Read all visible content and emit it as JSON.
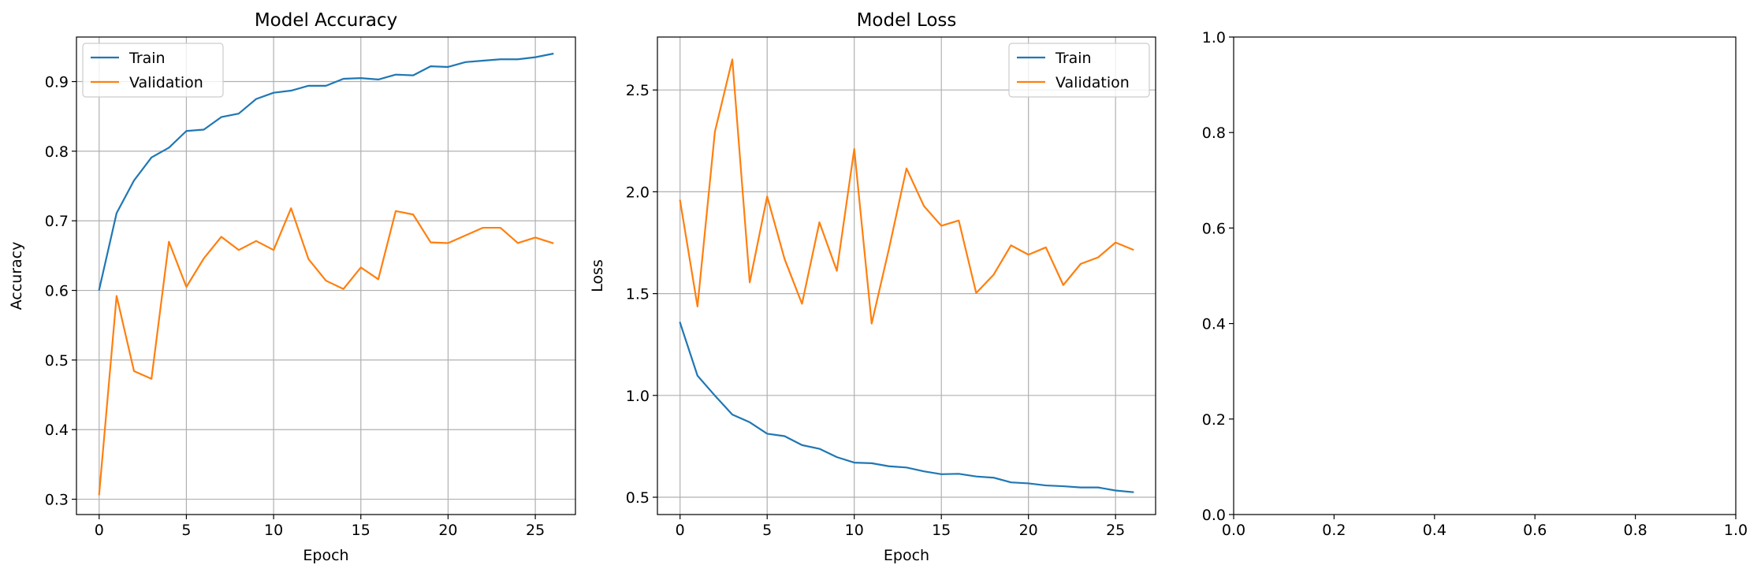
{
  "colors": {
    "train": "#1f77b4",
    "validation": "#ff7f0e",
    "grid": "#b0b0b0",
    "axis": "#000000"
  },
  "chart_data": [
    {
      "type": "line",
      "title": "Model Accuracy",
      "xlabel": "Epoch",
      "ylabel": "Accuracy",
      "xlim": [
        -1.3,
        27.3
      ],
      "ylim": [
        0.278,
        0.964
      ],
      "xticks": [
        0,
        5,
        10,
        15,
        20,
        25
      ],
      "yticks": [
        0.3,
        0.4,
        0.5,
        0.6,
        0.7,
        0.8,
        0.9
      ],
      "grid": true,
      "legend_position": "top-left",
      "x": [
        0,
        1,
        2,
        3,
        4,
        5,
        6,
        7,
        8,
        9,
        10,
        11,
        12,
        13,
        14,
        15,
        16,
        17,
        18,
        19,
        20,
        21,
        22,
        23,
        24,
        25,
        26
      ],
      "series": [
        {
          "name": "Train",
          "color": "#1f77b4",
          "values": [
            0.601,
            0.711,
            0.758,
            0.791,
            0.805,
            0.829,
            0.831,
            0.849,
            0.854,
            0.875,
            0.884,
            0.887,
            0.894,
            0.894,
            0.904,
            0.905,
            0.903,
            0.91,
            0.909,
            0.922,
            0.921,
            0.928,
            0.93,
            0.932,
            0.932,
            0.935,
            0.94
          ]
        },
        {
          "name": "Validation",
          "color": "#ff7f0e",
          "values": [
            0.307,
            0.592,
            0.484,
            0.473,
            0.67,
            0.605,
            0.646,
            0.677,
            0.658,
            0.671,
            0.658,
            0.718,
            0.645,
            0.614,
            0.602,
            0.633,
            0.616,
            0.714,
            0.709,
            0.669,
            0.668,
            0.679,
            0.69,
            0.69,
            0.668,
            0.676,
            0.668
          ]
        }
      ]
    },
    {
      "type": "line",
      "title": "Model Loss",
      "xlabel": "Epoch",
      "ylabel": "Loss",
      "xlim": [
        -1.3,
        27.3
      ],
      "ylim": [
        0.415,
        2.76
      ],
      "xticks": [
        0,
        5,
        10,
        15,
        20,
        25
      ],
      "yticks": [
        0.5,
        1.0,
        1.5,
        2.0,
        2.5
      ],
      "ytick_labels": [
        "0.5",
        "1.0",
        "1.5",
        "2.0",
        "2.5"
      ],
      "grid": true,
      "legend_position": "top-right",
      "x": [
        0,
        1,
        2,
        3,
        4,
        5,
        6,
        7,
        8,
        9,
        10,
        11,
        12,
        13,
        14,
        15,
        16,
        17,
        18,
        19,
        20,
        21,
        22,
        23,
        24,
        25,
        26
      ],
      "series": [
        {
          "name": "Train",
          "color": "#1f77b4",
          "values": [
            1.357,
            1.097,
            0.999,
            0.906,
            0.868,
            0.812,
            0.8,
            0.756,
            0.738,
            0.697,
            0.67,
            0.667,
            0.652,
            0.646,
            0.627,
            0.613,
            0.615,
            0.602,
            0.596,
            0.573,
            0.568,
            0.558,
            0.554,
            0.548,
            0.548,
            0.533,
            0.525
          ]
        },
        {
          "name": "Validation",
          "color": "#ff7f0e",
          "values": [
            1.957,
            1.437,
            2.295,
            2.65,
            1.555,
            1.977,
            1.67,
            1.45,
            1.85,
            1.612,
            2.21,
            1.353,
            1.723,
            2.115,
            1.93,
            1.833,
            1.859,
            1.503,
            1.593,
            1.737,
            1.691,
            1.727,
            1.542,
            1.646,
            1.678,
            1.751,
            1.716
          ]
        }
      ]
    },
    {
      "type": "line",
      "title": "",
      "xlabel": "",
      "ylabel": "",
      "xlim": [
        0.0,
        1.0
      ],
      "ylim": [
        0.0,
        1.0
      ],
      "xticks": [
        0.0,
        0.2,
        0.4,
        0.6,
        0.8,
        1.0
      ],
      "yticks": [
        0.0,
        0.2,
        0.4,
        0.6,
        0.8,
        1.0
      ],
      "xtick_labels": [
        "0.0",
        "0.2",
        "0.4",
        "0.6",
        "0.8",
        "1.0"
      ],
      "ytick_labels": [
        "0.0",
        "0.2",
        "0.4",
        "0.6",
        "0.8",
        "1.0"
      ],
      "grid": false,
      "x": [],
      "series": []
    }
  ]
}
